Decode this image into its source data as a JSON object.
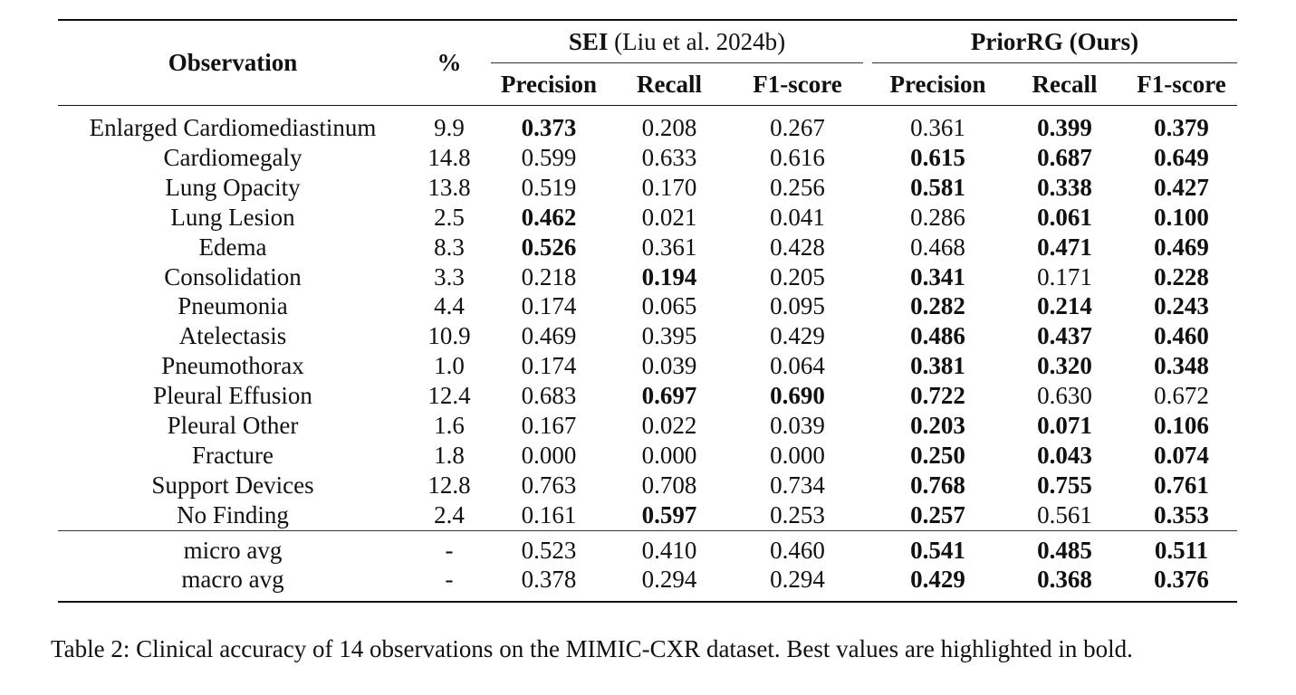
{
  "table": {
    "headers": {
      "observation": "Observation",
      "percent": "%",
      "group1": {
        "name": "SEI",
        "cite": "(Liu et al. 2024b)"
      },
      "group2": {
        "name": "PriorRG (Ours)"
      },
      "sub": [
        "Precision",
        "Recall",
        "F1-score",
        "Precision",
        "Recall",
        "F1-score"
      ]
    },
    "rows": [
      {
        "obs": "Enlarged Cardiomediastinum",
        "pct": "9.9",
        "v": [
          "0.373",
          "0.208",
          "0.267",
          "0.361",
          "0.399",
          "0.379"
        ],
        "bold": [
          true,
          false,
          false,
          false,
          true,
          true
        ]
      },
      {
        "obs": "Cardiomegaly",
        "pct": "14.8",
        "v": [
          "0.599",
          "0.633",
          "0.616",
          "0.615",
          "0.687",
          "0.649"
        ],
        "bold": [
          false,
          false,
          false,
          true,
          true,
          true
        ]
      },
      {
        "obs": "Lung Opacity",
        "pct": "13.8",
        "v": [
          "0.519",
          "0.170",
          "0.256",
          "0.581",
          "0.338",
          "0.427"
        ],
        "bold": [
          false,
          false,
          false,
          true,
          true,
          true
        ]
      },
      {
        "obs": "Lung Lesion",
        "pct": "2.5",
        "v": [
          "0.462",
          "0.021",
          "0.041",
          "0.286",
          "0.061",
          "0.100"
        ],
        "bold": [
          true,
          false,
          false,
          false,
          true,
          true
        ]
      },
      {
        "obs": "Edema",
        "pct": "8.3",
        "v": [
          "0.526",
          "0.361",
          "0.428",
          "0.468",
          "0.471",
          "0.469"
        ],
        "bold": [
          true,
          false,
          false,
          false,
          true,
          true
        ]
      },
      {
        "obs": "Consolidation",
        "pct": "3.3",
        "v": [
          "0.218",
          "0.194",
          "0.205",
          "0.341",
          "0.171",
          "0.228"
        ],
        "bold": [
          false,
          true,
          false,
          true,
          false,
          true
        ]
      },
      {
        "obs": "Pneumonia",
        "pct": "4.4",
        "v": [
          "0.174",
          "0.065",
          "0.095",
          "0.282",
          "0.214",
          "0.243"
        ],
        "bold": [
          false,
          false,
          false,
          true,
          true,
          true
        ]
      },
      {
        "obs": "Atelectasis",
        "pct": "10.9",
        "v": [
          "0.469",
          "0.395",
          "0.429",
          "0.486",
          "0.437",
          "0.460"
        ],
        "bold": [
          false,
          false,
          false,
          true,
          true,
          true
        ]
      },
      {
        "obs": "Pneumothorax",
        "pct": "1.0",
        "v": [
          "0.174",
          "0.039",
          "0.064",
          "0.381",
          "0.320",
          "0.348"
        ],
        "bold": [
          false,
          false,
          false,
          true,
          true,
          true
        ]
      },
      {
        "obs": "Pleural Effusion",
        "pct": "12.4",
        "v": [
          "0.683",
          "0.697",
          "0.690",
          "0.722",
          "0.630",
          "0.672"
        ],
        "bold": [
          false,
          true,
          true,
          true,
          false,
          false
        ]
      },
      {
        "obs": "Pleural Other",
        "pct": "1.6",
        "v": [
          "0.167",
          "0.022",
          "0.039",
          "0.203",
          "0.071",
          "0.106"
        ],
        "bold": [
          false,
          false,
          false,
          true,
          true,
          true
        ]
      },
      {
        "obs": "Fracture",
        "pct": "1.8",
        "v": [
          "0.000",
          "0.000",
          "0.000",
          "0.250",
          "0.043",
          "0.074"
        ],
        "bold": [
          false,
          false,
          false,
          true,
          true,
          true
        ]
      },
      {
        "obs": "Support Devices",
        "pct": "12.8",
        "v": [
          "0.763",
          "0.708",
          "0.734",
          "0.768",
          "0.755",
          "0.761"
        ],
        "bold": [
          false,
          false,
          false,
          true,
          true,
          true
        ]
      },
      {
        "obs": "No Finding",
        "pct": "2.4",
        "v": [
          "0.161",
          "0.597",
          "0.253",
          "0.257",
          "0.561",
          "0.353"
        ],
        "bold": [
          false,
          true,
          false,
          true,
          false,
          true
        ]
      }
    ],
    "avg_rows": [
      {
        "obs": "micro avg",
        "pct": "-",
        "v": [
          "0.523",
          "0.410",
          "0.460",
          "0.541",
          "0.485",
          "0.511"
        ],
        "bold": [
          false,
          false,
          false,
          true,
          true,
          true
        ]
      },
      {
        "obs": "macro avg",
        "pct": "-",
        "v": [
          "0.378",
          "0.294",
          "0.294",
          "0.429",
          "0.368",
          "0.376"
        ],
        "bold": [
          false,
          false,
          false,
          true,
          true,
          true
        ]
      }
    ]
  },
  "caption": "Table 2: Clinical accuracy of 14 observations on the MIMIC-CXR dataset. Best values are highlighted in bold."
}
